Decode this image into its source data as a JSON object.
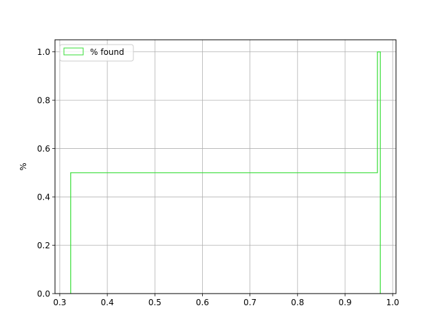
{
  "chart_data": {
    "type": "line",
    "drawstyle": "steps-post",
    "xlim": [
      0.29,
      1.007
    ],
    "ylim": [
      0.0,
      1.05
    ],
    "xticks": [
      0.3,
      0.4,
      0.5,
      0.6,
      0.7,
      0.8,
      0.9,
      1.0
    ],
    "xtick_labels": [
      "0.3",
      "0.4",
      "0.5",
      "0.6",
      "0.7",
      "0.8",
      "0.9",
      "1.0"
    ],
    "yticks": [
      0.0,
      0.2,
      0.4,
      0.6,
      0.8,
      1.0
    ],
    "ytick_labels": [
      "0.0",
      "0.2",
      "0.4",
      "0.6",
      "0.8",
      "1.0"
    ],
    "ylabel": "%",
    "xlabel": "",
    "title": "",
    "grid": true,
    "legend_position": "upper left",
    "series": [
      {
        "name": "% found",
        "color": "#33dd33",
        "x": [
          0.323,
          0.323,
          0.968,
          0.968,
          0.974,
          0.974
        ],
        "y": [
          0.0,
          0.5,
          0.5,
          1.0,
          1.0,
          0.0
        ]
      }
    ]
  }
}
